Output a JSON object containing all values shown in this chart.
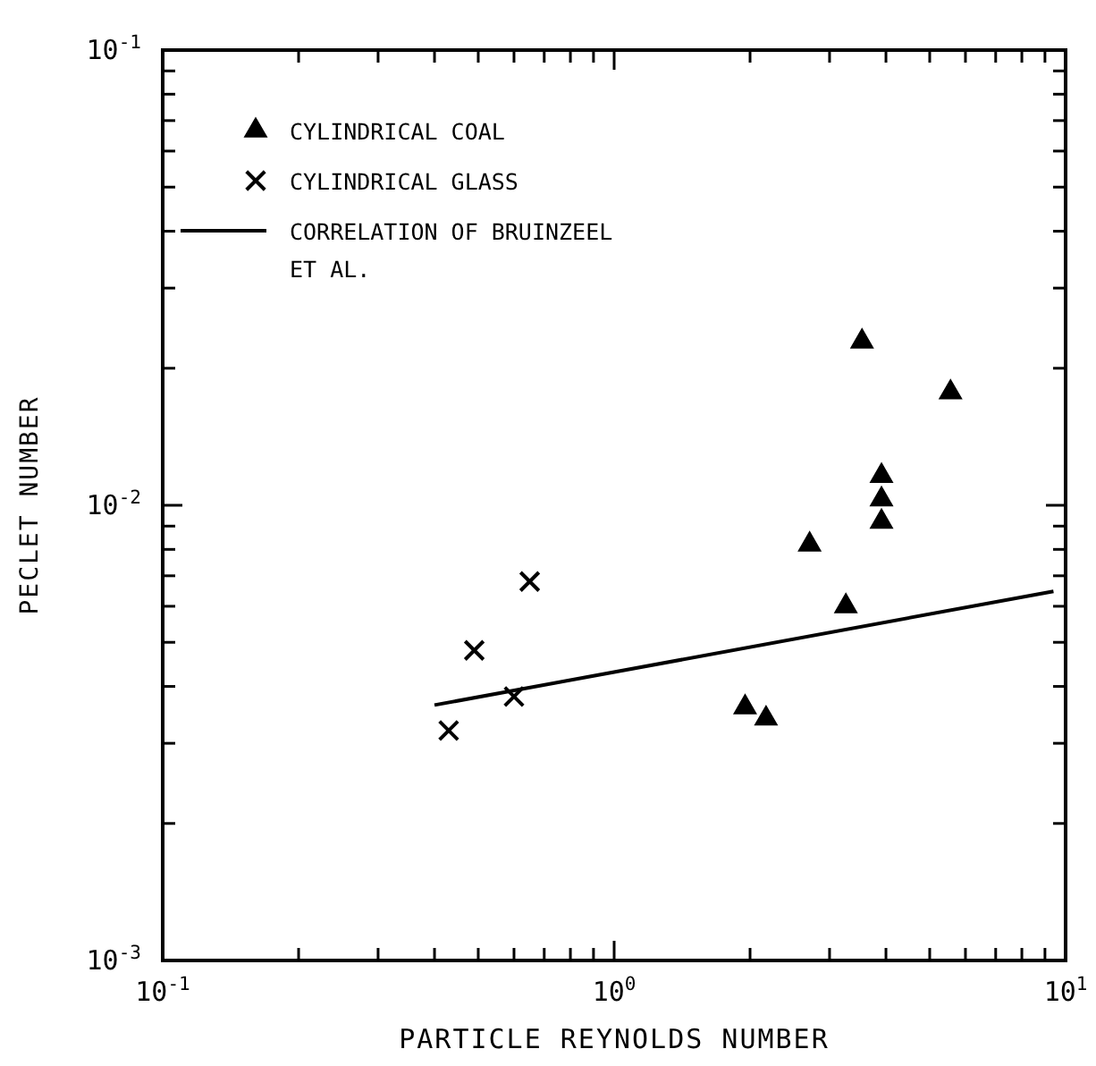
{
  "chart_data": {
    "type": "scatter",
    "xlabel": "PARTICLE REYNOLDS NUMBER",
    "ylabel": "PECLET NUMBER",
    "log": "xy",
    "xlim": [
      0.1,
      10
    ],
    "ylim": [
      0.001,
      0.1
    ],
    "xticks": [
      {
        "value": 0.1,
        "label": "10$^{-1}$"
      },
      {
        "value": 0.2,
        "label": null
      },
      {
        "value": 0.3,
        "label": null
      },
      {
        "value": 0.4,
        "label": null
      },
      {
        "value": 0.5,
        "label": null
      },
      {
        "value": 0.6,
        "label": null
      },
      {
        "value": 0.7,
        "label": null
      },
      {
        "value": 0.8,
        "label": null
      },
      {
        "value": 0.9,
        "label": null
      },
      {
        "value": 1,
        "label": "10$^{0}$"
      },
      {
        "value": 2,
        "label": null
      },
      {
        "value": 3,
        "label": null
      },
      {
        "value": 4,
        "label": null
      },
      {
        "value": 5,
        "label": null
      },
      {
        "value": 6,
        "label": null
      },
      {
        "value": 7,
        "label": null
      },
      {
        "value": 8,
        "label": null
      },
      {
        "value": 9,
        "label": null
      },
      {
        "value": 10,
        "label": "10$^{1}$"
      }
    ],
    "yticks": [
      {
        "value": 0.001,
        "label": "10$^{-3}$"
      },
      {
        "value": 0.002,
        "label": null
      },
      {
        "value": 0.003,
        "label": null
      },
      {
        "value": 0.004,
        "label": null
      },
      {
        "value": 0.005,
        "label": null
      },
      {
        "value": 0.006,
        "label": null
      },
      {
        "value": 0.007,
        "label": null
      },
      {
        "value": 0.008,
        "label": null
      },
      {
        "value": 0.009,
        "label": null
      },
      {
        "value": 0.01,
        "label": "10$^{-2}$"
      },
      {
        "value": 0.02,
        "label": null
      },
      {
        "value": 0.03,
        "label": null
      },
      {
        "value": 0.04,
        "label": null
      },
      {
        "value": 0.05,
        "label": null
      },
      {
        "value": 0.06,
        "label": null
      },
      {
        "value": 0.07,
        "label": null
      },
      {
        "value": 0.08,
        "label": null
      },
      {
        "value": 0.09,
        "label": null
      },
      {
        "value": 0.1,
        "label": "10$^{-1}$"
      }
    ],
    "grid": false,
    "legend": "top left",
    "series": [
      {
        "name": "CYLINDRICAL COAL",
        "color": "#000000",
        "marker": "triangle",
        "x": [
          3.54,
          5.56,
          3.91,
          3.91,
          3.91,
          2.71,
          3.26,
          1.95,
          2.17
        ],
        "values": [
          0.0229,
          0.0177,
          0.0116,
          0.0103,
          0.0092,
          0.0082,
          0.006,
          0.0036,
          0.0034
        ]
      },
      {
        "name": "CYLINDRICAL GLASS",
        "color": "#000000",
        "marker": "cross",
        "x": [
          0.65,
          0.49,
          0.6,
          0.43
        ],
        "values": [
          0.0068,
          0.0048,
          0.0038,
          0.0032
        ]
      },
      {
        "name": "CORRELATION OF BRUINZEEL ET AL.",
        "type": "line",
        "color": "#000000",
        "marker": "none",
        "line_style": "solid",
        "x": [
          0.4,
          9.4
        ],
        "values": [
          0.00364,
          0.00647
        ]
      }
    ]
  }
}
